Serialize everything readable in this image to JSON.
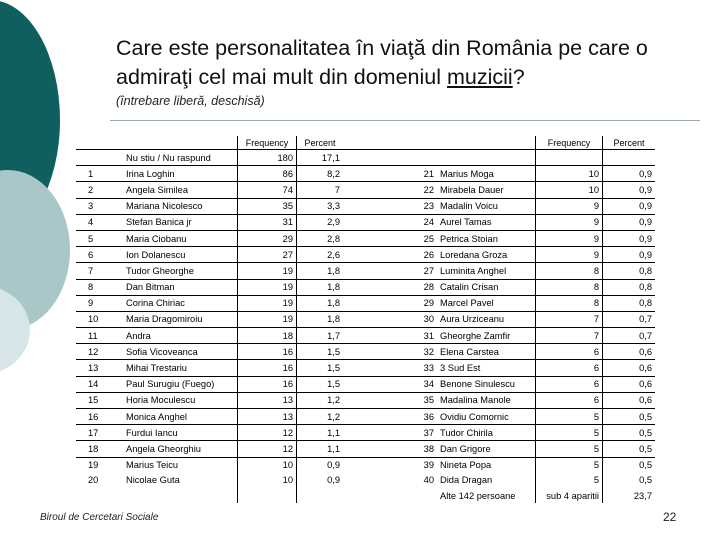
{
  "slide": {
    "title_pre": "Care este personalitatea în viaţă din România pe care o admiraţi cel mai mult din domeniul ",
    "title_underlined": "muzicii",
    "title_post": "?",
    "subtitle": "(întrebare liberă, deschisă)",
    "footer": "Biroul de Cercetari Sociale",
    "page_number": "22"
  },
  "table": {
    "headers": {
      "frequency": "Frequency",
      "percent": "Percent"
    },
    "top_row": {
      "name": "Nu stiu / Nu raspund",
      "frequency": "180",
      "percent": "17,1"
    },
    "rows": [
      {
        "n": "1",
        "name": "Irina Loghin",
        "freq": "86",
        "pct": "8,2",
        "n2": "21",
        "name2": "Marius Moga",
        "freq2": "10",
        "pct2": "0,9"
      },
      {
        "n": "2",
        "name": "Angela Similea",
        "freq": "74",
        "pct": "7",
        "n2": "22",
        "name2": "Mirabela Dauer",
        "freq2": "10",
        "pct2": "0,9"
      },
      {
        "n": "3",
        "name": "Mariana Nicolesco",
        "freq": "35",
        "pct": "3,3",
        "n2": "23",
        "name2": "Madalin Voicu",
        "freq2": "9",
        "pct2": "0,9"
      },
      {
        "n": "4",
        "name": "Stefan Banica jr",
        "freq": "31",
        "pct": "2,9",
        "n2": "24",
        "name2": "Aurel Tamas",
        "freq2": "9",
        "pct2": "0,9"
      },
      {
        "n": "5",
        "name": "Maria Ciobanu",
        "freq": "29",
        "pct": "2,8",
        "n2": "25",
        "name2": "Petrica Stoian",
        "freq2": "9",
        "pct2": "0,9"
      },
      {
        "n": "6",
        "name": "Ion Dolanescu",
        "freq": "27",
        "pct": "2,6",
        "n2": "26",
        "name2": "Loredana Groza",
        "freq2": "9",
        "pct2": "0,9"
      },
      {
        "n": "7",
        "name": "Tudor Gheorghe",
        "freq": "19",
        "pct": "1,8",
        "n2": "27",
        "name2": "Luminita Anghel",
        "freq2": "8",
        "pct2": "0,8"
      },
      {
        "n": "8",
        "name": "Dan Bitman",
        "freq": "19",
        "pct": "1,8",
        "n2": "28",
        "name2": "Catalin Crisan",
        "freq2": "8",
        "pct2": "0,8"
      },
      {
        "n": "9",
        "name": "Corina Chiriac",
        "freq": "19",
        "pct": "1,8",
        "n2": "29",
        "name2": "Marcel Pavel",
        "freq2": "8",
        "pct2": "0,8"
      },
      {
        "n": "10",
        "name": "Maria Dragomiroiu",
        "freq": "19",
        "pct": "1,8",
        "n2": "30",
        "name2": "Aura Urziceanu",
        "freq2": "7",
        "pct2": "0,7"
      },
      {
        "n": "11",
        "name": "Andra",
        "freq": "18",
        "pct": "1,7",
        "n2": "31",
        "name2": "Gheorghe Zamfir",
        "freq2": "7",
        "pct2": "0,7"
      },
      {
        "n": "12",
        "name": "Sofia Vicoveanca",
        "freq": "16",
        "pct": "1,5",
        "n2": "32",
        "name2": "Elena Carstea",
        "freq2": "6",
        "pct2": "0,6"
      },
      {
        "n": "13",
        "name": "Mihai Trestariu",
        "freq": "16",
        "pct": "1,5",
        "n2": "33",
        "name2": "3 Sud Est",
        "freq2": "6",
        "pct2": "0,6"
      },
      {
        "n": "14",
        "name": "Paul Surugiu (Fuego)",
        "freq": "16",
        "pct": "1,5",
        "n2": "34",
        "name2": "Benone Sinulescu",
        "freq2": "6",
        "pct2": "0,6"
      },
      {
        "n": "15",
        "name": "Horia Moculescu",
        "freq": "13",
        "pct": "1,2",
        "n2": "35",
        "name2": "Madalina Manole",
        "freq2": "6",
        "pct2": "0,6"
      },
      {
        "n": "16",
        "name": "Monica Anghel",
        "freq": "13",
        "pct": "1,2",
        "n2": "36",
        "name2": "Ovidiu Comornic",
        "freq2": "5",
        "pct2": "0,5"
      },
      {
        "n": "17",
        "name": "Furdui Iancu",
        "freq": "12",
        "pct": "1,1",
        "n2": "37",
        "name2": "Tudor Chirila",
        "freq2": "5",
        "pct2": "0,5"
      },
      {
        "n": "18",
        "name": "Angela Gheorghiu",
        "freq": "12",
        "pct": "1,1",
        "n2": "38",
        "name2": "Dan Grigore",
        "freq2": "5",
        "pct2": "0,5"
      },
      {
        "n": "19",
        "name": "Marius Teicu",
        "freq": "10",
        "pct": "0,9",
        "n2": "39",
        "name2": "Nineta Popa",
        "freq2": "5",
        "pct2": "0,5"
      },
      {
        "n": "20",
        "name": "Nicolae Guta",
        "freq": "10",
        "pct": "0,9",
        "n2": "40",
        "name2": "Dida Dragan",
        "freq2": "5",
        "pct2": "0,5"
      }
    ],
    "bottom_row": {
      "name": "Alte 142 persoane",
      "frequency": "sub 4 aparitii",
      "percent": "23,7"
    }
  },
  "colors": {
    "teal_dark": "#0f5f5f",
    "teal_light": "#a9c6c8",
    "accent_pale": "#d6e6e8"
  }
}
